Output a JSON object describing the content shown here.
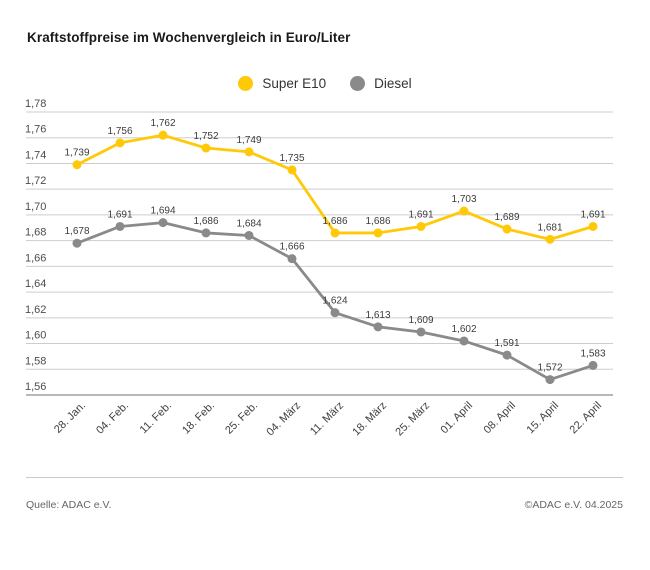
{
  "header": {
    "title": "Kraftstoffpreise im Wochenvergleich in Euro/Liter"
  },
  "chart_data": {
    "type": "line",
    "title": "Kraftstoffpreise im Wochenvergleich in Euro/Liter",
    "xlabel": "",
    "ylabel": "Euro/Liter",
    "categories": [
      "28. Jan.",
      "04. Feb.",
      "11. Feb.",
      "18. Feb.",
      "25. Feb.",
      "04. März",
      "11. März",
      "18. März",
      "25. März",
      "01. April",
      "08. April",
      "15. April",
      "22. April"
    ],
    "series": [
      {
        "name": "Super E10",
        "color": "#ffc907",
        "values": [
          1.739,
          1.756,
          1.762,
          1.752,
          1.749,
          1.735,
          1.686,
          1.686,
          1.691,
          1.703,
          1.689,
          1.681,
          1.691
        ],
        "labels": [
          "1,739",
          "1,756",
          "1,762",
          "1,752",
          "1,749",
          "1,735",
          "1,686",
          "1,686",
          "1,691",
          "1,703",
          "1,689",
          "1,681",
          "1,691"
        ]
      },
      {
        "name": "Diesel",
        "color": "#8a8a8a",
        "values": [
          1.678,
          1.691,
          1.694,
          1.686,
          1.684,
          1.666,
          1.624,
          1.613,
          1.609,
          1.602,
          1.591,
          1.572,
          1.583
        ],
        "labels": [
          "1,678",
          "1,691",
          "1,694",
          "1,686",
          "1,684",
          "1,666",
          "1,624",
          "1,613",
          "1,609",
          "1,602",
          "1,591",
          "1,572",
          "1,583"
        ]
      }
    ],
    "ylim": [
      1.56,
      1.78
    ],
    "ytick_step": 0.02,
    "yticks": [
      "1,78",
      "1,76",
      "1,74",
      "1,72",
      "1,70",
      "1,68",
      "1,66",
      "1,64",
      "1,62",
      "1,60",
      "1,58",
      "1,56"
    ],
    "grid": "horizontal",
    "legend_position": "top-center",
    "point_labels_visible": true
  },
  "colors": {
    "grid": "#cdcdcd",
    "axis": "#a0a0a0"
  },
  "footer": {
    "source": "Quelle: ADAC e.V.",
    "copyright": "©ADAC e.V. 04.2025"
  }
}
